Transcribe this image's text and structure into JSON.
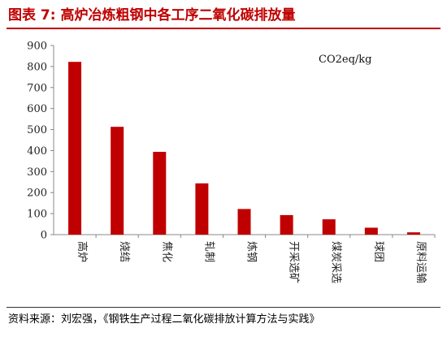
{
  "header": {
    "title": "图表 7: 高炉冶炼粗钢中各工序二氧化碳排放量"
  },
  "footer": {
    "source": "资料来源：刘宏强，《钢铁生产过程二氧化碳排放计算方法与实践》"
  },
  "colors": {
    "accent": "#c00000",
    "bar": "#c00000"
  },
  "chart_data": {
    "type": "bar",
    "title": "",
    "unit_label": "CO2eq/kg",
    "xlabel": "",
    "ylabel": "",
    "categories": [
      "高炉",
      "烧结",
      "焦化",
      "轧制",
      "炼钢",
      "开采选矿",
      "煤炭采选",
      "球团",
      "原料运输"
    ],
    "values": [
      822,
      513,
      394,
      244,
      122,
      93,
      73,
      33,
      11
    ],
    "ylim": [
      0,
      900
    ],
    "yticks": [
      0,
      100,
      200,
      300,
      400,
      500,
      600,
      700,
      800,
      900
    ],
    "grid": false,
    "legend": "none"
  }
}
